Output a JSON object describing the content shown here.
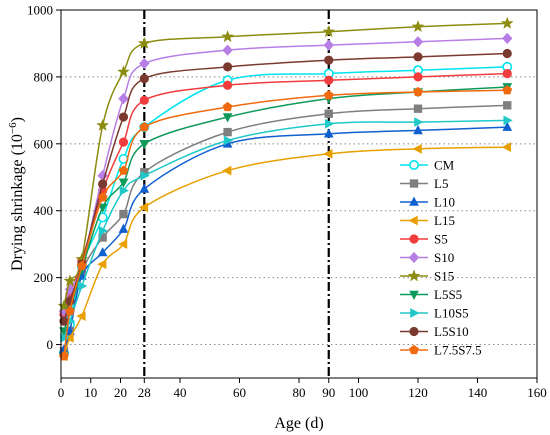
{
  "chart_data": {
    "type": "line",
    "xlabel": "Age (d)",
    "ylabel": "Drying shrinkage (10⁻⁶)",
    "ylabel_main": "Drying shrinkage (10",
    "ylabel_sup": "−6",
    "ylabel_close": ")",
    "xlim": [
      0,
      160
    ],
    "ylim": [
      -100,
      1000
    ],
    "xticks": [
      0,
      10,
      20,
      28,
      40,
      60,
      80,
      90,
      100,
      120,
      140,
      160
    ],
    "xtick_labels": [
      "0",
      "10",
      "20",
      "28",
      "40",
      "60",
      "80",
      "90",
      "100",
      "120",
      "140",
      "160"
    ],
    "yticks": [
      0,
      200,
      400,
      600,
      800,
      1000
    ],
    "ytick_labels": [
      "0",
      "200",
      "400",
      "600",
      "800",
      "1000"
    ],
    "grid": "horizontal-dotted",
    "reference_lines_x": [
      28,
      90
    ],
    "legend_position": "right-middle",
    "series": [
      {
        "name": "CM",
        "color": "#00e5ee",
        "marker": "circle-open",
        "x": [
          1,
          3,
          7,
          14,
          21,
          28,
          56,
          90,
          120,
          150
        ],
        "y": [
          -25,
          60,
          235,
          380,
          555,
          650,
          790,
          810,
          820,
          830
        ]
      },
      {
        "name": "L5",
        "color": "#7f7f7f",
        "marker": "square",
        "x": [
          1,
          3,
          7,
          14,
          21,
          28,
          56,
          90,
          120,
          150
        ],
        "y": [
          -20,
          40,
          215,
          320,
          390,
          515,
          635,
          690,
          705,
          715
        ]
      },
      {
        "name": "L10",
        "color": "#1060d0",
        "marker": "triangle-up",
        "x": [
          1,
          3,
          7,
          14,
          21,
          28,
          56,
          90,
          120,
          150
        ],
        "y": [
          -15,
          40,
          205,
          275,
          345,
          465,
          600,
          630,
          640,
          650
        ]
      },
      {
        "name": "L15",
        "color": "#e8a000",
        "marker": "triangle-left",
        "x": [
          1,
          3,
          7,
          14,
          21,
          28,
          56,
          90,
          120,
          150
        ],
        "y": [
          -35,
          20,
          85,
          240,
          300,
          410,
          520,
          570,
          585,
          590
        ]
      },
      {
        "name": "S5",
        "color": "#f03c3c",
        "marker": "circle",
        "x": [
          1,
          3,
          7,
          14,
          21,
          28,
          56,
          90,
          120,
          150
        ],
        "y": [
          90,
          150,
          250,
          460,
          605,
          730,
          775,
          790,
          800,
          810
        ]
      },
      {
        "name": "S10",
        "color": "#b77ee6",
        "marker": "diamond",
        "x": [
          1,
          3,
          7,
          14,
          21,
          28,
          56,
          90,
          120,
          150
        ],
        "y": [
          100,
          165,
          235,
          505,
          735,
          840,
          880,
          895,
          905,
          915
        ]
      },
      {
        "name": "S15",
        "color": "#8c8c10",
        "marker": "star",
        "x": [
          1,
          3,
          7,
          14,
          21,
          28,
          56,
          90,
          120,
          150
        ],
        "y": [
          115,
          190,
          255,
          655,
          815,
          900,
          920,
          935,
          950,
          960
        ]
      },
      {
        "name": "L5S5",
        "color": "#0e9a5a",
        "marker": "triangle-down",
        "x": [
          1,
          3,
          7,
          14,
          21,
          28,
          56,
          90,
          120,
          150
        ],
        "y": [
          40,
          100,
          225,
          410,
          485,
          600,
          680,
          735,
          755,
          770
        ]
      },
      {
        "name": "L10S5",
        "color": "#20c8c8",
        "marker": "triangle-right",
        "x": [
          1,
          3,
          7,
          14,
          21,
          28,
          56,
          90,
          120,
          150
        ],
        "y": [
          20,
          70,
          175,
          340,
          460,
          505,
          610,
          660,
          665,
          670
        ]
      },
      {
        "name": "L5S10",
        "color": "#7a3a30",
        "marker": "circle",
        "x": [
          1,
          3,
          7,
          14,
          21,
          28,
          56,
          90,
          120,
          150
        ],
        "y": [
          70,
          130,
          240,
          480,
          680,
          795,
          830,
          850,
          860,
          870
        ]
      },
      {
        "name": "L7.5S7.5",
        "color": "#f06a10",
        "marker": "pentagon",
        "x": [
          1,
          3,
          7,
          14,
          21,
          28,
          56,
          90,
          120,
          150
        ],
        "y": [
          -35,
          100,
          235,
          440,
          520,
          650,
          710,
          745,
          755,
          760
        ]
      }
    ]
  }
}
